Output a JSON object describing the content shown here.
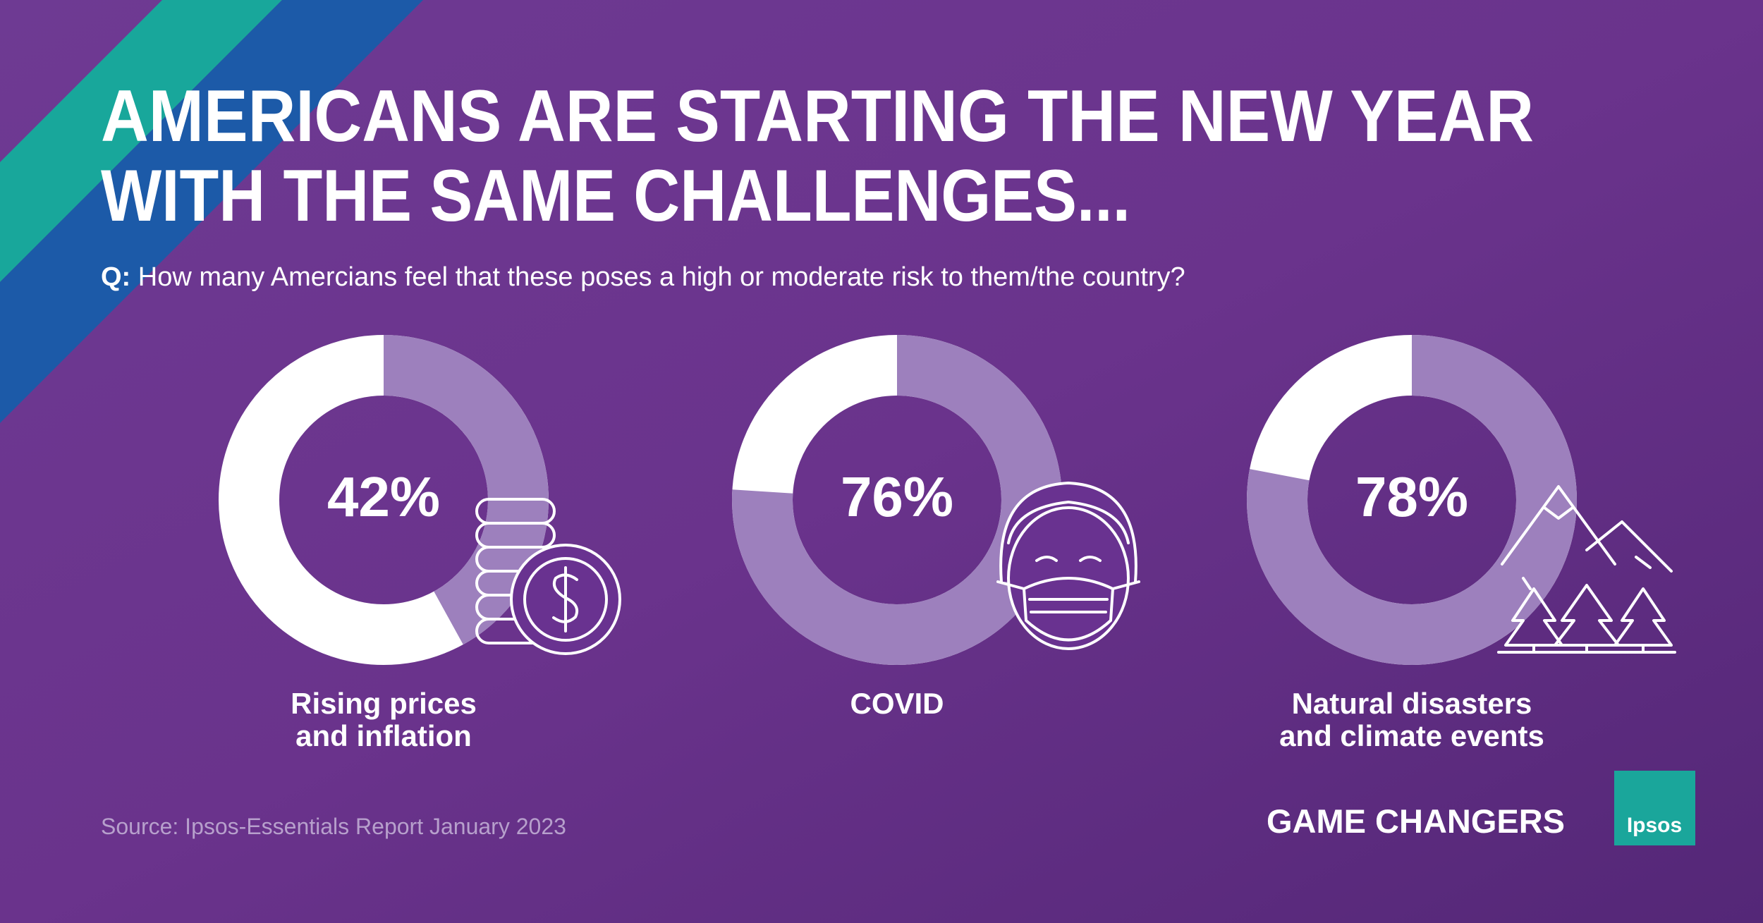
{
  "header": {
    "title_lines": [
      "AMERICANS ARE STARTING THE NEW YEAR",
      "WITH THE SAME CHALLENGES..."
    ],
    "question_prefix": "Q:",
    "question": "How many Amercians feel that these poses a high or moderate risk to them/the country?"
  },
  "chart_data": [
    {
      "type": "donut",
      "label": [
        "Rising prices",
        "and inflation"
      ],
      "values": [
        42
      ],
      "value_labels": [
        "42%"
      ],
      "color": "#9d80bd",
      "track_color": "#ffffff"
    },
    {
      "type": "donut",
      "label": [
        "COVID"
      ],
      "values": [
        76
      ],
      "value_labels": [
        "76%"
      ],
      "color": "#9d80bd",
      "track_color": "#ffffff"
    },
    {
      "type": "donut",
      "label": [
        "Natural disasters",
        "and climate events"
      ],
      "values": [
        78
      ],
      "value_labels": [
        "78%"
      ],
      "color": "#9d80bd",
      "track_color": "#ffffff"
    }
  ],
  "footer": {
    "source": "Source: Ipsos-Essentials Report January 2023",
    "brand": "GAME CHANGERS",
    "logo": "Ipsos"
  }
}
